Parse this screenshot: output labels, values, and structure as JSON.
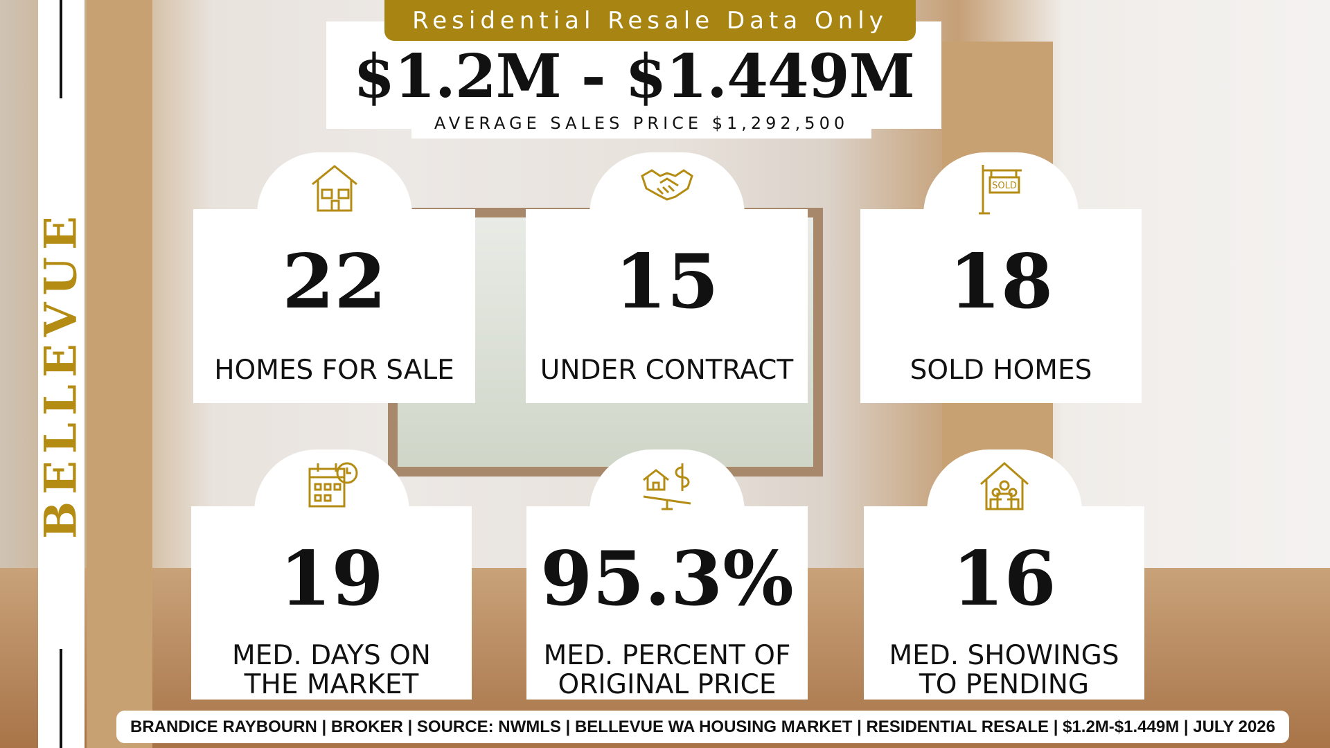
{
  "banner": "Residential Resale Data Only",
  "price_range": "$1.2M - $1.449M",
  "average_price": "AVERAGE SALES PRICE $1,292,500",
  "city": "BELLEVUE",
  "stats": [
    {
      "value": "22",
      "label_lines": [
        "HOMES FOR SALE"
      ]
    },
    {
      "value": "15",
      "label_lines": [
        "UNDER CONTRACT"
      ]
    },
    {
      "value": "18",
      "label_lines": [
        "SOLD HOMES"
      ]
    },
    {
      "value": "19",
      "label_lines": [
        "MED. DAYS ON",
        "THE MARKET"
      ]
    },
    {
      "value": "95.3%",
      "label_lines": [
        "MED. PERCENT OF",
        "ORIGINAL PRICE"
      ]
    },
    {
      "value": "16",
      "label_lines": [
        "MED. SHOWINGS",
        "TO PENDING"
      ]
    }
  ],
  "footer": "BRANDICE RAYBOURN | BROKER | SOURCE: NWMLS | BELLEVUE WA HOUSING MARKET | RESIDENTIAL RESALE | $1.2M-$1.449M | JULY 2026"
}
